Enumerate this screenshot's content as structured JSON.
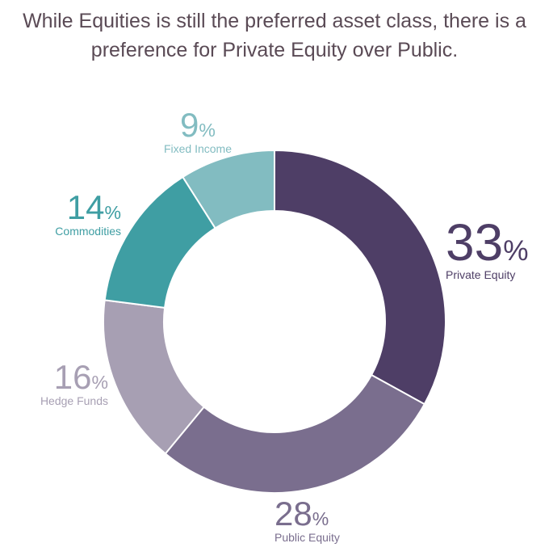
{
  "header": {
    "title_line1": "While Equities is still the preferred asset class, there is a",
    "title_line2": "preference for Private Equity over Public."
  },
  "colors": {
    "title": "#5a4a55",
    "private_equity": "#4e3e66",
    "public_equity": "#7a6e8e",
    "hedge_funds": "#a79fb3",
    "commodities": "#3f9ea3",
    "fixed_income": "#82bcc1"
  },
  "chart_data": {
    "type": "pie",
    "categories": [
      "Private Equity",
      "Public Equity",
      "Hedge Funds",
      "Commodities",
      "Fixed Income"
    ],
    "values": [
      33,
      28,
      16,
      14,
      9
    ],
    "unit": "%",
    "labels": [
      {
        "value": "33",
        "unit": "%",
        "name": "Private Equity"
      },
      {
        "value": "28",
        "unit": "%",
        "name": "Public Equity"
      },
      {
        "value": "16",
        "unit": "%",
        "name": "Hedge Funds"
      },
      {
        "value": "14",
        "unit": "%",
        "name": "Commodities"
      },
      {
        "value": "9",
        "unit": "%",
        "name": "Fixed Income"
      }
    ]
  }
}
